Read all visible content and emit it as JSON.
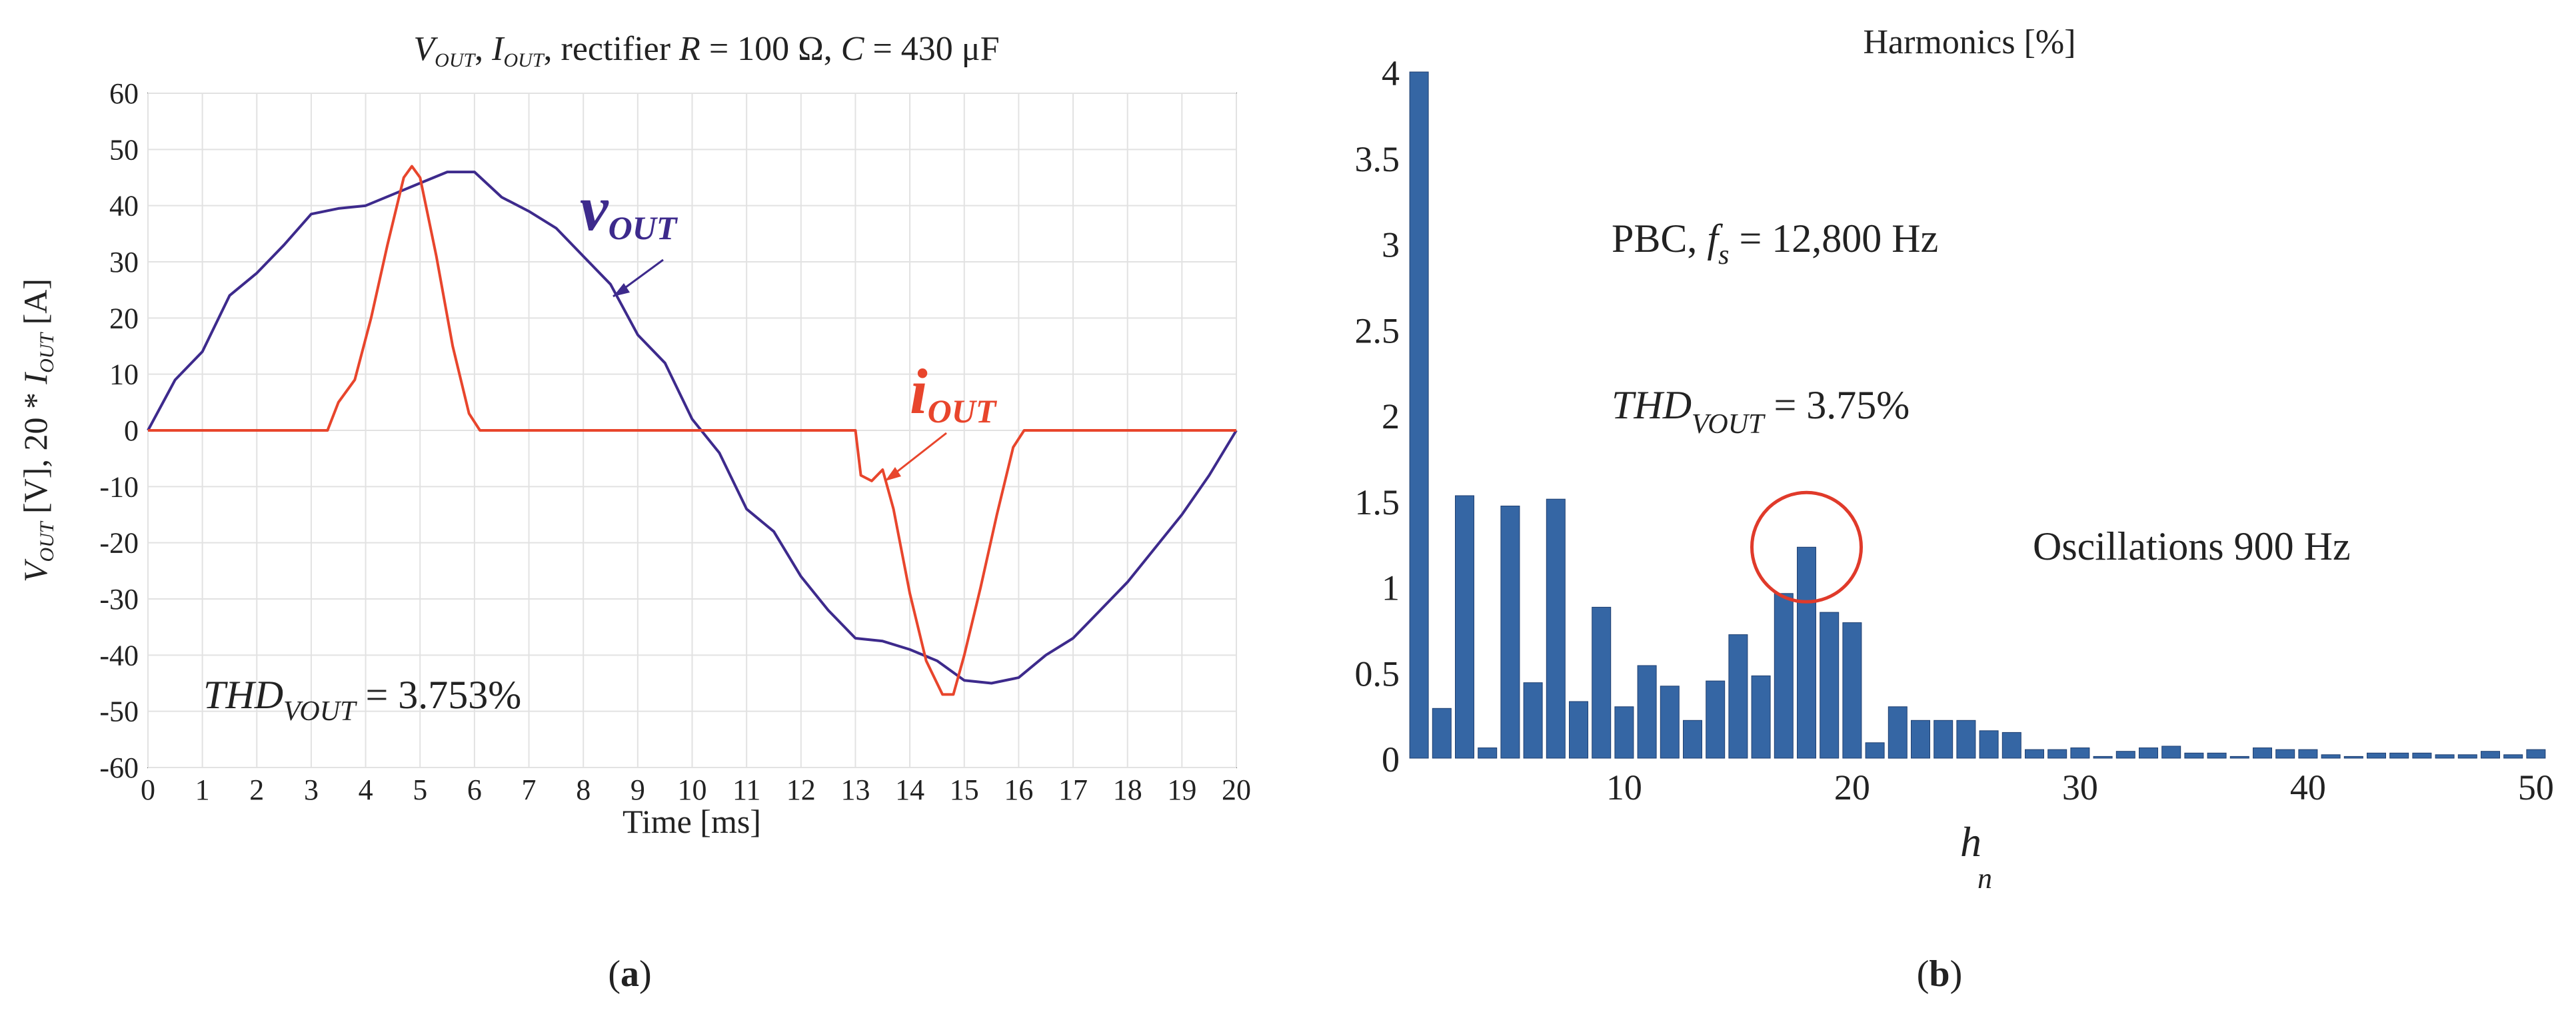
{
  "chart_data": [
    {
      "panel": "a",
      "type": "line",
      "title": "V_OUT, I_OUT, rectifier R = 100 Ω, C = 430 μF",
      "title_parts": {
        "v": "V",
        "v_sub": "OUT",
        "sep1": ", ",
        "i": "I",
        "i_sub": "OUT",
        "sep2": ", rectifier ",
        "r": "R",
        "r_val": " = 100 Ω, ",
        "c": "C",
        "c_val": " = 430 μF"
      },
      "xlabel": "Time [ms]",
      "ylabel": "V_OUT [V], 20 * I_OUT [A]",
      "ylabel_parts": {
        "v": "V",
        "v_sub": "OUT",
        "mid": " [V], 20 * ",
        "i": "I",
        "i_sub": "OUT",
        "end": " [A]"
      },
      "xlim": [
        0,
        20
      ],
      "ylim": [
        -60,
        60
      ],
      "x_ticks": [
        "0",
        "1",
        "2",
        "3",
        "4",
        "5",
        "6",
        "7",
        "8",
        "9",
        "10",
        "11",
        "12",
        "13",
        "14",
        "15",
        "16",
        "17",
        "18",
        "19",
        "20"
      ],
      "y_ticks": [
        "60",
        "50",
        "40",
        "30",
        "20",
        "10",
        "0",
        "-10",
        "-20",
        "-30",
        "-40",
        "-50",
        "-60"
      ],
      "grid": true,
      "series": [
        {
          "name": "v_OUT",
          "label_main": "v",
          "label_sub": "OUT",
          "color": "#3d2a8c",
          "x": [
            0,
            0.5,
            1,
            1.5,
            2,
            2.5,
            3,
            3.5,
            4,
            4.5,
            5,
            5.5,
            6,
            6.5,
            7,
            7.5,
            8,
            8.5,
            9,
            9.5,
            10,
            10.5,
            11,
            11.5,
            12,
            12.5,
            13,
            13.5,
            14,
            14.5,
            15,
            15.5,
            16,
            16.5,
            17,
            17.5,
            18,
            18.5,
            19,
            19.5,
            20
          ],
          "values": [
            0,
            9,
            14,
            24,
            28,
            33,
            38.5,
            39.5,
            40,
            42,
            44,
            46,
            46,
            41.5,
            39,
            36,
            31,
            26,
            17,
            12,
            2,
            -4,
            -14,
            -18,
            -26,
            -32,
            -37,
            -37.5,
            -39,
            -41,
            -44.5,
            -45,
            -44,
            -40,
            -37,
            -32,
            -27,
            -21,
            -15,
            -8,
            0
          ]
        },
        {
          "name": "i_OUT",
          "label_main": "i",
          "label_sub": "OUT",
          "color": "#e8452c",
          "x": [
            0,
            1,
            2,
            3,
            3.3,
            3.5,
            3.8,
            4.1,
            4.4,
            4.7,
            4.85,
            5,
            5.3,
            5.6,
            5.9,
            6.1,
            6.3,
            7,
            8,
            9,
            10,
            11,
            12,
            13,
            13.1,
            13.3,
            13.5,
            13.7,
            14,
            14.3,
            14.6,
            14.8,
            15,
            15.3,
            15.6,
            15.9,
            16.1,
            17,
            18,
            19,
            20
          ],
          "values": [
            0,
            0,
            0,
            0,
            0,
            5,
            9,
            20,
            33,
            45,
            47,
            45,
            31,
            15,
            3,
            0,
            0,
            0,
            0,
            0,
            0,
            0,
            0,
            0,
            -8,
            -9,
            -7,
            -14,
            -29,
            -41,
            -47,
            -47,
            -40,
            -28,
            -15,
            -3,
            0,
            0,
            0,
            0,
            0
          ]
        }
      ],
      "annotation": {
        "main": "THD",
        "sub": "VOUT",
        "rest": " = 3.753%"
      }
    },
    {
      "panel": "b",
      "type": "bar",
      "title": "Harmonics [%]",
      "xlabel": "h_n",
      "xlabel_parts": {
        "main": "h",
        "sub": "n"
      },
      "xlim": [
        1,
        50
      ],
      "ylim": [
        0,
        4
      ],
      "x_ticks": [
        "10",
        "20",
        "30",
        "40",
        "50"
      ],
      "y_ticks": [
        "4",
        "3.5",
        "3",
        "2.5",
        "2",
        "1.5",
        "1",
        "0.5",
        "0"
      ],
      "bar_color": "#3566a4",
      "categories": [
        1,
        2,
        3,
        4,
        5,
        6,
        7,
        8,
        9,
        10,
        11,
        12,
        13,
        14,
        15,
        16,
        17,
        18,
        19,
        20,
        21,
        22,
        23,
        24,
        25,
        26,
        27,
        28,
        29,
        30,
        31,
        32,
        33,
        34,
        35,
        36,
        37,
        38,
        39,
        40,
        41,
        42,
        43,
        44,
        45,
        46,
        47,
        48,
        49,
        50
      ],
      "values": [
        4,
        0.29,
        1.53,
        0.06,
        1.47,
        0.44,
        1.51,
        0.33,
        0.88,
        0.3,
        0.54,
        0.42,
        0.22,
        0.45,
        0.72,
        0.48,
        0.96,
        1.23,
        0.85,
        0.79,
        0.09,
        0.3,
        0.22,
        0.22,
        0.22,
        0.16,
        0.15,
        0.05,
        0.05,
        0.06,
        0.01,
        0.04,
        0.06,
        0.07,
        0.03,
        0.03,
        0.01,
        0.06,
        0.05,
        0.05,
        0.02,
        0.01,
        0.03,
        0.03,
        0.03,
        0.02,
        0.02,
        0.04,
        0.02,
        0.05
      ],
      "annotations": {
        "pbc": {
          "main": "PBC, ",
          "f": "f",
          "f_sub": "s",
          "rest": " = 12,800 Hz"
        },
        "thd": {
          "main": "THD",
          "sub": "VOUT",
          "rest": " = 3.75%"
        },
        "oscillations": "Oscillations 900 Hz",
        "highlight": {
          "harmonic": 18,
          "color": "#e03a2a"
        }
      }
    }
  ],
  "panel_labels": [
    "(a)",
    "(b)"
  ],
  "panel_labels_parts": [
    {
      "open": "(",
      "letter": "a",
      "close": ")"
    },
    {
      "open": "(",
      "letter": "b",
      "close": ")"
    }
  ]
}
